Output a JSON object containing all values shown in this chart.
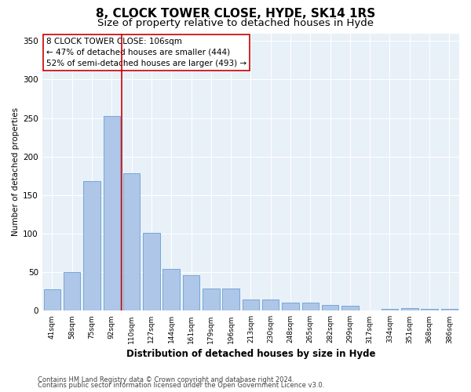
{
  "title": "8, CLOCK TOWER CLOSE, HYDE, SK14 1RS",
  "subtitle": "Size of property relative to detached houses in Hyde",
  "xlabel": "Distribution of detached houses by size in Hyde",
  "ylabel": "Number of detached properties",
  "categories": [
    "41sqm",
    "58sqm",
    "75sqm",
    "92sqm",
    "110sqm",
    "127sqm",
    "144sqm",
    "161sqm",
    "179sqm",
    "196sqm",
    "213sqm",
    "230sqm",
    "248sqm",
    "265sqm",
    "282sqm",
    "299sqm",
    "317sqm",
    "334sqm",
    "351sqm",
    "368sqm",
    "386sqm"
  ],
  "values": [
    28,
    50,
    168,
    253,
    178,
    101,
    54,
    46,
    29,
    29,
    15,
    15,
    11,
    11,
    7,
    6,
    0,
    2,
    3,
    2,
    2
  ],
  "bar_color": "#aec6e8",
  "bar_edge_color": "#6a9fd0",
  "property_line_index": 3.5,
  "property_line_color": "#cc0000",
  "annotation_text": "8 CLOCK TOWER CLOSE: 106sqm\n← 47% of detached houses are smaller (444)\n52% of semi-detached houses are larger (493) →",
  "annotation_box_color": "#ffffff",
  "annotation_box_edge": "#cc0000",
  "ylim": [
    0,
    360
  ],
  "yticks": [
    0,
    50,
    100,
    150,
    200,
    250,
    300,
    350
  ],
  "footer_line1": "Contains HM Land Registry data © Crown copyright and database right 2024.",
  "footer_line2": "Contains public sector information licensed under the Open Government Licence v3.0.",
  "plot_bg_color": "#e8f0f8",
  "title_fontsize": 11,
  "subtitle_fontsize": 9.5
}
